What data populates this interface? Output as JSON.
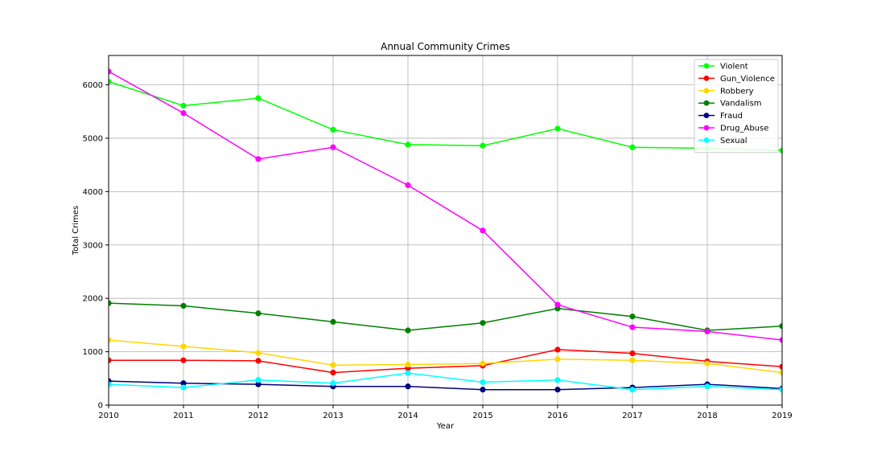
{
  "chart_data": {
    "type": "line",
    "title": "Annual Community Crimes",
    "xlabel": "Year",
    "ylabel": "Total Crimes",
    "x": [
      2010,
      2011,
      2012,
      2013,
      2014,
      2015,
      2016,
      2017,
      2018,
      2019
    ],
    "x_tick_labels": [
      "2010",
      "2011",
      "2012",
      "2013",
      "2014",
      "2015",
      "2016",
      "2017",
      "2018",
      "2019"
    ],
    "xlim": [
      2010,
      2019
    ],
    "ylim": [
      0,
      6550
    ],
    "y_ticks": [
      0,
      1000,
      2000,
      3000,
      4000,
      5000,
      6000
    ],
    "y_tick_labels": [
      "0",
      "1000",
      "2000",
      "3000",
      "4000",
      "5000",
      "6000"
    ],
    "grid": true,
    "legend_position": "top-right",
    "series": [
      {
        "name": "Violent",
        "color": "#00ff00",
        "marker": true,
        "values": [
          6060,
          5610,
          5750,
          5160,
          4880,
          4860,
          5180,
          4830,
          4810,
          4770
        ]
      },
      {
        "name": "Gun_Violence",
        "color": "#ff0000",
        "marker": true,
        "values": [
          840,
          840,
          830,
          610,
          690,
          740,
          1040,
          970,
          820,
          720
        ]
      },
      {
        "name": "Robbery",
        "color": "#ffd700",
        "marker": true,
        "values": [
          1220,
          1100,
          980,
          750,
          760,
          780,
          860,
          840,
          780,
          610
        ]
      },
      {
        "name": "Vandalism",
        "color": "#008000",
        "marker": true,
        "values": [
          1910,
          1860,
          1720,
          1560,
          1400,
          1540,
          1810,
          1660,
          1400,
          1480
        ]
      },
      {
        "name": "Fraud",
        "color": "#000080",
        "marker": true,
        "values": [
          450,
          410,
          390,
          350,
          350,
          290,
          290,
          330,
          390,
          310
        ]
      },
      {
        "name": "Drug_Abuse",
        "color": "#ff00ff",
        "marker": true,
        "values": [
          6250,
          5470,
          4610,
          4830,
          4120,
          3270,
          1880,
          1460,
          1380,
          1220
        ]
      },
      {
        "name": "Sexual",
        "color": "#00ffff",
        "marker": true,
        "values": [
          390,
          330,
          470,
          410,
          600,
          430,
          470,
          290,
          350,
          290
        ]
      }
    ]
  }
}
